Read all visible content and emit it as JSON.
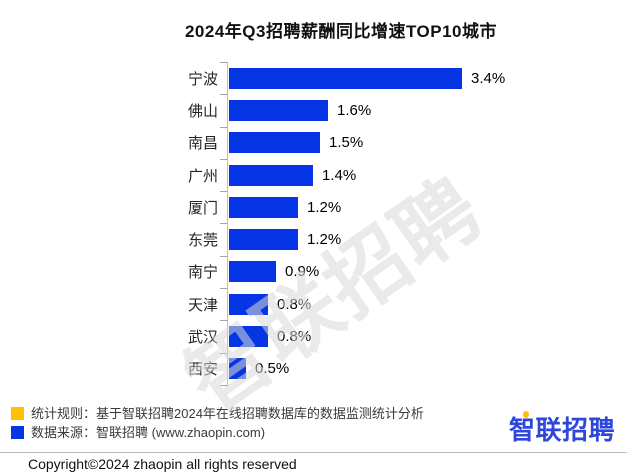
{
  "title": "2024年Q3招聘薪酬同比增速TOP10城市",
  "chart_data": {
    "type": "bar",
    "orientation": "horizontal",
    "title": "2024年Q3招聘薪酬同比增速TOP10城市",
    "categories": [
      "宁波",
      "佛山",
      "南昌",
      "广州",
      "厦门",
      "东莞",
      "南宁",
      "天津",
      "武汉",
      "西安"
    ],
    "values": [
      3.4,
      1.6,
      1.5,
      1.4,
      1.2,
      1.2,
      0.9,
      0.8,
      0.8,
      0.5
    ],
    "value_labels": [
      "3.4%",
      "1.6%",
      "1.5%",
      "1.4%",
      "1.2%",
      "1.2%",
      "0.9%",
      "0.8%",
      "0.8%",
      "0.5%"
    ],
    "unit": "%",
    "xlim": [
      0,
      3.5
    ],
    "grid": false,
    "data_labels": true,
    "bar_color": "#0636e4",
    "axis_color": "#bfbfbf"
  },
  "watermark": "智联招聘",
  "legend": {
    "items": [
      {
        "color": "#ffc000",
        "text": "统计规则：基于智联招聘2024年在线招聘数据库的数据监测统计分析"
      },
      {
        "color": "#0636e4",
        "text": "数据来源：智联招聘 (www.zhaopin.com)"
      }
    ]
  },
  "logo": {
    "text": "智联招聘",
    "color": "#2f46db",
    "accent": "#ffbe00"
  },
  "copyright": "Copyright©2024 zhaopin all rights reserved"
}
